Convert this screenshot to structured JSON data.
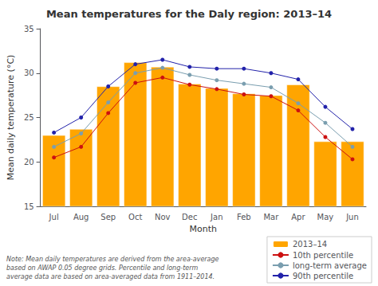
{
  "chart_data": {
    "type": "bar",
    "title": "Mean temperatures for the Daly region: 2013–14",
    "xlabel": "Month",
    "ylabel": "Mean daily temperature (°C)",
    "categories": [
      "Jul",
      "Aug",
      "Sep",
      "Oct",
      "Nov",
      "Dec",
      "Jan",
      "Feb",
      "Mar",
      "Apr",
      "May",
      "Jun"
    ],
    "series": [
      {
        "name": "2013–14",
        "type": "bar",
        "color": "#FFA500",
        "values": [
          23.0,
          23.7,
          28.5,
          31.2,
          30.7,
          28.8,
          28.3,
          27.7,
          27.5,
          28.7,
          22.3,
          22.3
        ]
      },
      {
        "name": "10th percentile",
        "type": "line",
        "color": "#CC1111",
        "marker": "circle",
        "values": [
          20.5,
          21.7,
          25.5,
          28.9,
          29.5,
          28.7,
          28.2,
          27.6,
          27.4,
          25.8,
          22.8,
          20.3
        ]
      },
      {
        "name": "long-term average",
        "type": "line",
        "color": "#7A9EAF",
        "marker": "circle",
        "values": [
          21.7,
          23.2,
          26.7,
          30.0,
          30.6,
          29.8,
          29.2,
          28.8,
          28.4,
          26.6,
          24.4,
          21.7
        ]
      },
      {
        "name": "90th percentile",
        "type": "line",
        "color": "#2222AA",
        "marker": "circle",
        "values": [
          23.3,
          25.0,
          28.5,
          31.0,
          31.5,
          30.7,
          30.5,
          30.5,
          30.0,
          29.3,
          26.2,
          23.7
        ]
      }
    ],
    "ylim": [
      15,
      35
    ],
    "yticks": [
      15,
      20,
      25,
      30,
      35
    ],
    "grid": false,
    "legend": "lower right",
    "annotations": [
      "Note: Mean daily temperatures are derived from the area-average\nbased on AWAP 0.05 degree grids. Percentile and long-term\naverage data are based on area-averaged data from 1911–2014."
    ]
  }
}
